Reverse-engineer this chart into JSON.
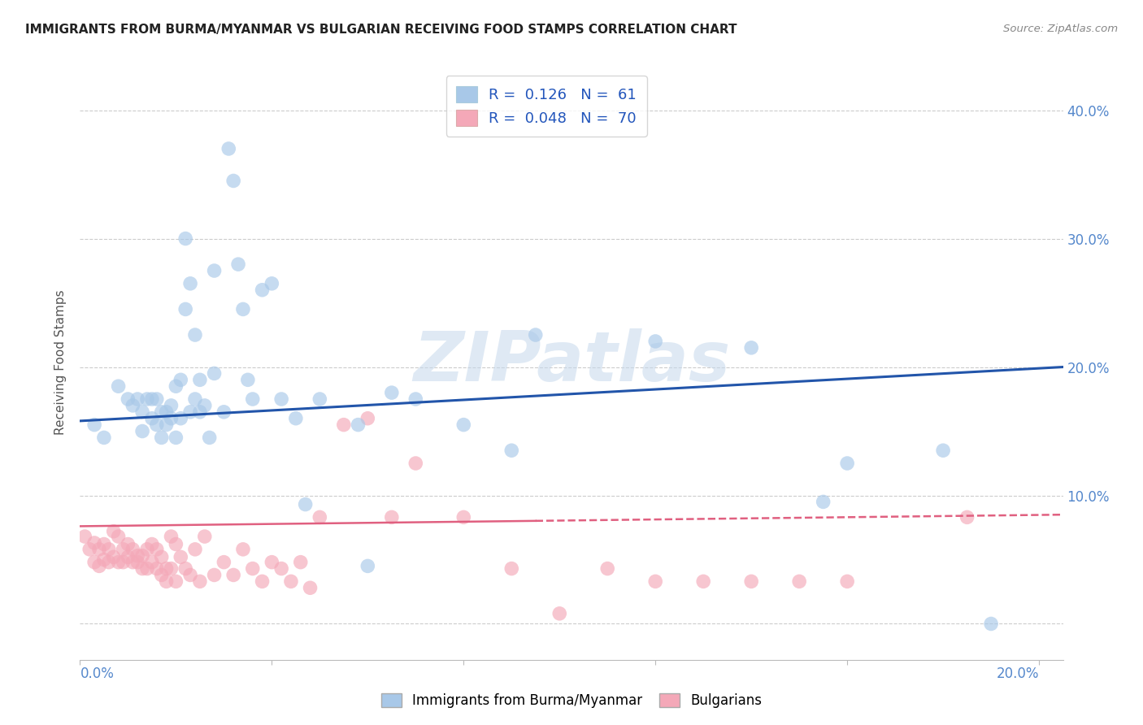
{
  "title": "IMMIGRANTS FROM BURMA/MYANMAR VS BULGARIAN RECEIVING FOOD STAMPS CORRELATION CHART",
  "source": "Source: ZipAtlas.com",
  "ylabel": "Receiving Food Stamps",
  "xlim": [
    0.0,
    0.205
  ],
  "ylim": [
    -0.028,
    0.435
  ],
  "yticks": [
    0.0,
    0.1,
    0.2,
    0.3,
    0.4
  ],
  "ytick_labels": [
    "",
    "10.0%",
    "20.0%",
    "30.0%",
    "40.0%"
  ],
  "xticks": [
    0.0,
    0.04,
    0.08,
    0.12,
    0.16,
    0.2
  ],
  "legend_r_blue": "0.126",
  "legend_n_blue": "61",
  "legend_r_pink": "0.048",
  "legend_n_pink": "70",
  "blue_color": "#a8c8e8",
  "pink_color": "#f4a8b8",
  "line_blue_color": "#2255aa",
  "line_pink_color": "#e06080",
  "watermark": "ZIPatlas",
  "blue_scatter_x": [
    0.003,
    0.005,
    0.008,
    0.01,
    0.011,
    0.012,
    0.013,
    0.013,
    0.014,
    0.015,
    0.015,
    0.016,
    0.016,
    0.017,
    0.017,
    0.018,
    0.018,
    0.019,
    0.019,
    0.02,
    0.02,
    0.021,
    0.021,
    0.022,
    0.022,
    0.023,
    0.023,
    0.024,
    0.024,
    0.025,
    0.025,
    0.026,
    0.027,
    0.028,
    0.028,
    0.03,
    0.031,
    0.032,
    0.033,
    0.034,
    0.035,
    0.036,
    0.038,
    0.04,
    0.042,
    0.045,
    0.047,
    0.05,
    0.058,
    0.06,
    0.065,
    0.07,
    0.08,
    0.09,
    0.095,
    0.12,
    0.14,
    0.155,
    0.16,
    0.18,
    0.19
  ],
  "blue_scatter_y": [
    0.155,
    0.145,
    0.185,
    0.175,
    0.17,
    0.175,
    0.165,
    0.15,
    0.175,
    0.16,
    0.175,
    0.175,
    0.155,
    0.165,
    0.145,
    0.165,
    0.155,
    0.17,
    0.16,
    0.185,
    0.145,
    0.19,
    0.16,
    0.3,
    0.245,
    0.265,
    0.165,
    0.225,
    0.175,
    0.19,
    0.165,
    0.17,
    0.145,
    0.275,
    0.195,
    0.165,
    0.37,
    0.345,
    0.28,
    0.245,
    0.19,
    0.175,
    0.26,
    0.265,
    0.175,
    0.16,
    0.093,
    0.175,
    0.155,
    0.045,
    0.18,
    0.175,
    0.155,
    0.135,
    0.225,
    0.22,
    0.215,
    0.095,
    0.125,
    0.135,
    0.0
  ],
  "pink_scatter_x": [
    0.001,
    0.002,
    0.003,
    0.003,
    0.004,
    0.004,
    0.005,
    0.005,
    0.006,
    0.006,
    0.007,
    0.007,
    0.008,
    0.008,
    0.009,
    0.009,
    0.01,
    0.01,
    0.011,
    0.011,
    0.012,
    0.012,
    0.013,
    0.013,
    0.014,
    0.014,
    0.015,
    0.015,
    0.016,
    0.016,
    0.017,
    0.017,
    0.018,
    0.018,
    0.019,
    0.019,
    0.02,
    0.02,
    0.021,
    0.022,
    0.023,
    0.024,
    0.025,
    0.026,
    0.028,
    0.03,
    0.032,
    0.034,
    0.036,
    0.038,
    0.04,
    0.042,
    0.044,
    0.046,
    0.048,
    0.05,
    0.055,
    0.06,
    0.065,
    0.07,
    0.08,
    0.09,
    0.1,
    0.11,
    0.12,
    0.13,
    0.14,
    0.15,
    0.16,
    0.185
  ],
  "pink_scatter_y": [
    0.068,
    0.058,
    0.063,
    0.048,
    0.058,
    0.045,
    0.05,
    0.062,
    0.058,
    0.048,
    0.072,
    0.052,
    0.048,
    0.068,
    0.058,
    0.048,
    0.062,
    0.052,
    0.058,
    0.048,
    0.053,
    0.048,
    0.053,
    0.043,
    0.058,
    0.043,
    0.062,
    0.048,
    0.058,
    0.043,
    0.038,
    0.052,
    0.043,
    0.033,
    0.068,
    0.043,
    0.062,
    0.033,
    0.052,
    0.043,
    0.038,
    0.058,
    0.033,
    0.068,
    0.038,
    0.048,
    0.038,
    0.058,
    0.043,
    0.033,
    0.048,
    0.043,
    0.033,
    0.048,
    0.028,
    0.083,
    0.155,
    0.16,
    0.083,
    0.125,
    0.083,
    0.043,
    0.008,
    0.043,
    0.033,
    0.033,
    0.033,
    0.033,
    0.033,
    0.083
  ],
  "blue_line_x": [
    0.0,
    0.205
  ],
  "blue_line_y": [
    0.158,
    0.2
  ],
  "pink_line_x": [
    0.0,
    0.205
  ],
  "pink_line_y": [
    0.076,
    0.085
  ],
  "pink_line_dash_start": 0.095
}
